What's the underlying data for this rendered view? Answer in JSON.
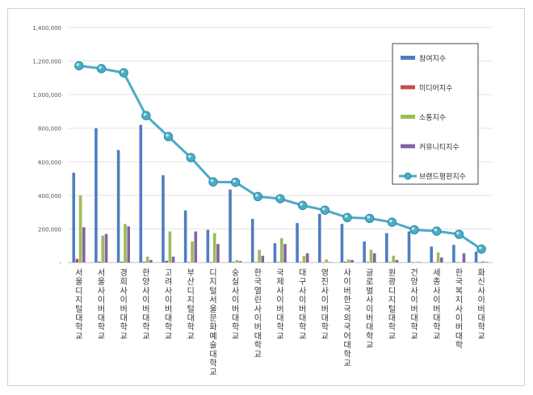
{
  "chart_data": {
    "type": "bar",
    "title": "",
    "xlabel": "",
    "ylabel": "",
    "ylim": [
      0,
      1400000
    ],
    "yticks": [
      "-",
      "200,000",
      "400,000",
      "600,000",
      "800,000",
      "1,000,000",
      "1,200,000",
      "1,400,000"
    ],
    "grid": true,
    "legend_position": "top-right",
    "categories": [
      "서울디지털대학교",
      "서울사이버대학교",
      "경희사이버대학교",
      "한양사이버대학교",
      "고려사이버대학교",
      "부산디지털대학교",
      "디지털서울문화예술대학교",
      "숭실사이버대학교",
      "한국열린사이버대학교",
      "국제사이버대학교",
      "대구사이버대학교",
      "영진사이버대학교",
      "사이버한국외국어대학교",
      "글로벌사이버대학교",
      "원광디지털대학교",
      "건양사이버대학교",
      "세종사이버대학교",
      "한국복지사이버대학",
      "화신사이버대학교"
    ],
    "series": [
      {
        "name": "참여지수",
        "kind": "bar",
        "color": "#4f7ec1",
        "values": [
          535000,
          800000,
          670000,
          820000,
          520000,
          310000,
          195000,
          435000,
          260000,
          115000,
          235000,
          290000,
          230000,
          125000,
          175000,
          185000,
          95000,
          105000,
          65000
        ]
      },
      {
        "name": "미디어지수",
        "kind": "bar",
        "color": "#c0504d",
        "values": [
          22000,
          5000,
          5000,
          5000,
          10000,
          2000,
          3000,
          4000,
          3000,
          3000,
          3000,
          1000,
          5000,
          3000,
          3000,
          2000,
          2000,
          2000,
          1000
        ]
      },
      {
        "name": "소통지수",
        "kind": "bar",
        "color": "#9bbb59",
        "values": [
          400000,
          160000,
          230000,
          35000,
          185000,
          125000,
          175000,
          15000,
          75000,
          145000,
          40000,
          18000,
          18000,
          75000,
          40000,
          3000,
          60000,
          3000,
          8000
        ]
      },
      {
        "name": "커뮤니티지수",
        "kind": "bar",
        "color": "#8064a2",
        "values": [
          210000,
          170000,
          215000,
          15000,
          35000,
          185000,
          110000,
          8000,
          40000,
          110000,
          55000,
          3000,
          15000,
          55000,
          15000,
          3000,
          30000,
          55000,
          3000
        ]
      },
      {
        "name": "브랜드평판지수",
        "kind": "line",
        "color": "#4bacc6",
        "values": [
          1172000,
          1155000,
          1130000,
          875000,
          750000,
          625000,
          480000,
          478000,
          393000,
          380000,
          340000,
          312000,
          268000,
          263000,
          240000,
          195000,
          187000,
          168000,
          80000
        ]
      }
    ]
  }
}
